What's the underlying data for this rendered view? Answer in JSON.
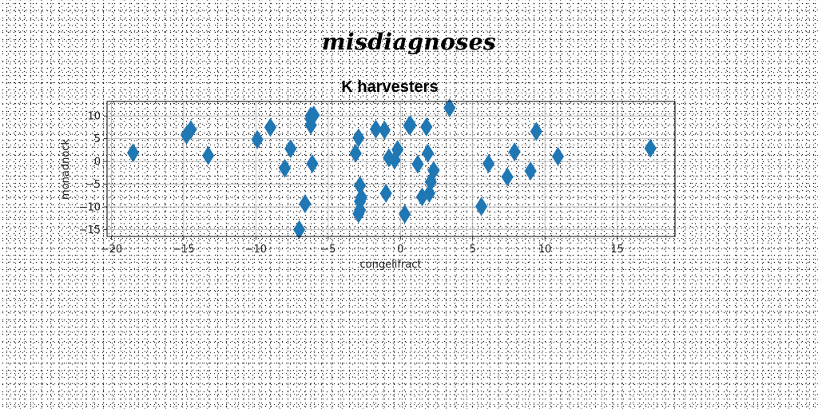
{
  "header": {
    "title": "misdiagnoses"
  },
  "chart_data": {
    "type": "scatter",
    "title": "K harvesters",
    "xlabel": "congelifract",
    "ylabel": "monadnock",
    "xlim": [
      -20.3,
      19.0
    ],
    "ylim": [
      -16.5,
      13.2
    ],
    "xticks": [
      -20,
      -15,
      -10,
      -5,
      0,
      5,
      10,
      15
    ],
    "yticks": [
      -15,
      -10,
      -5,
      0,
      5,
      10
    ],
    "grid": true,
    "marker": "thin_diamond",
    "color": "#1f77b4",
    "x": [
      -18.5,
      -14.8,
      -14.5,
      -13.3,
      -9.9,
      -9.0,
      -7.6,
      -8.0,
      -6.6,
      -7.0,
      -6.2,
      -6.2,
      -6.2,
      -6.0,
      -6.1,
      -3.1,
      -2.9,
      -2.8,
      -2.7,
      -2.8,
      -2.9,
      -2.8,
      -1.7,
      -1.1,
      -1.0,
      -0.8,
      -0.4,
      -0.2,
      0.3,
      0.6,
      0.7,
      1.2,
      1.5,
      1.8,
      2.0,
      1.9,
      2.1,
      2.3,
      3.4,
      5.6,
      6.1,
      7.4,
      7.9,
      9.0,
      9.4,
      10.9,
      17.3
    ],
    "y": [
      1.9,
      5.8,
      7.0,
      1.3,
      4.8,
      7.5,
      2.8,
      -1.5,
      -9.3,
      -15.0,
      10.0,
      8.0,
      9.3,
      10.2,
      -0.5,
      1.8,
      5.2,
      -5.3,
      -7.9,
      -8.8,
      -11.5,
      -10.7,
      7.1,
      6.9,
      -7.0,
      0.8,
      0.3,
      2.6,
      -11.6,
      7.9,
      8.0,
      -0.6,
      -7.8,
      7.6,
      -7.0,
      1.8,
      -4.5,
      -2.0,
      11.8,
      -9.9,
      -0.5,
      -3.4,
      2.1,
      -2.1,
      6.6,
      1.1,
      2.9
    ]
  }
}
